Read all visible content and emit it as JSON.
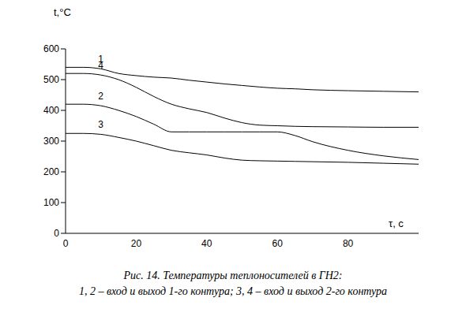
{
  "chart_data": {
    "type": "line",
    "title": "Рис. 14. Температуры теплоносителей в ГН2:",
    "subtitle": "1, 2 – вход и выход 1-го контура; 3, 4 – вход и выход 2-го контура",
    "x_label": "τ, с",
    "y_label": "t,°C",
    "x": [
      0,
      5,
      10,
      15,
      20,
      25,
      30,
      35,
      40,
      45,
      50,
      55,
      60,
      65,
      70,
      80,
      90,
      100
    ],
    "series": [
      {
        "name": "1",
        "color": "#000000",
        "values": [
          540,
          540,
          535,
          520,
          513,
          508,
          505,
          498,
          492,
          486,
          481,
          476,
          472,
          470,
          467,
          464,
          462,
          460
        ]
      },
      {
        "name": "4",
        "color": "#000000",
        "values": [
          520,
          520,
          515,
          500,
          475,
          445,
          420,
          405,
          393,
          375,
          360,
          352,
          350,
          348,
          347,
          346,
          345,
          345
        ]
      },
      {
        "name": "2",
        "color": "#000000",
        "values": [
          420,
          420,
          415,
          400,
          380,
          355,
          330,
          330,
          330,
          330,
          330,
          330,
          330,
          318,
          298,
          270,
          252,
          240
        ]
      },
      {
        "name": "3",
        "color": "#000000",
        "values": [
          325,
          325,
          322,
          312,
          300,
          285,
          270,
          262,
          255,
          245,
          238,
          236,
          235,
          234,
          233,
          231,
          228,
          225
        ]
      }
    ],
    "xlim": [
      0,
      100
    ],
    "xticks": [
      0,
      20,
      40,
      60,
      80
    ],
    "ylim": [
      0,
      600
    ],
    "yticks": [
      0,
      100,
      200,
      300,
      400,
      500,
      600
    ],
    "grid": false
  }
}
